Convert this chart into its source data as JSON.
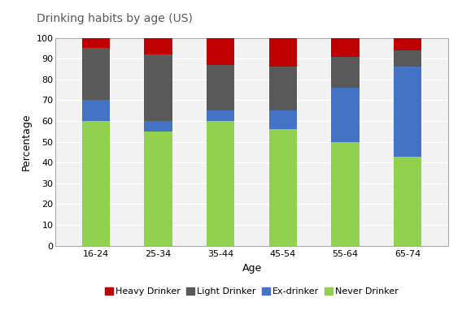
{
  "title": "Drinking habits by age (US)",
  "xlabel": "Age",
  "ylabel": "Percentage",
  "categories": [
    "16-24",
    "25-34",
    "35-44",
    "45-54",
    "55-64",
    "65-74"
  ],
  "series": {
    "Never Drinker": [
      60,
      55,
      60,
      56,
      50,
      43
    ],
    "Ex-drinker": [
      10,
      5,
      5,
      9,
      26,
      43
    ],
    "Light Drinker": [
      25,
      32,
      22,
      21,
      15,
      8
    ],
    "Heavy Drinker": [
      5,
      8,
      13,
      14,
      9,
      6
    ]
  },
  "colors": {
    "Never Drinker": "#92d050",
    "Ex-drinker": "#4472c4",
    "Light Drinker": "#595959",
    "Heavy Drinker": "#c00000"
  },
  "ylim": [
    0,
    100
  ],
  "yticks": [
    0,
    10,
    20,
    30,
    40,
    50,
    60,
    70,
    80,
    90,
    100
  ],
  "bar_width": 0.45,
  "legend_order": [
    "Heavy Drinker",
    "Light Drinker",
    "Ex-drinker",
    "Never Drinker"
  ],
  "background_color": "#ffffff",
  "plot_bg_color": "#f2f2f2",
  "grid_color": "#ffffff",
  "title_color": "#595959",
  "title_fontsize": 10,
  "axis_label_fontsize": 9,
  "tick_fontsize": 8,
  "legend_fontsize": 8
}
